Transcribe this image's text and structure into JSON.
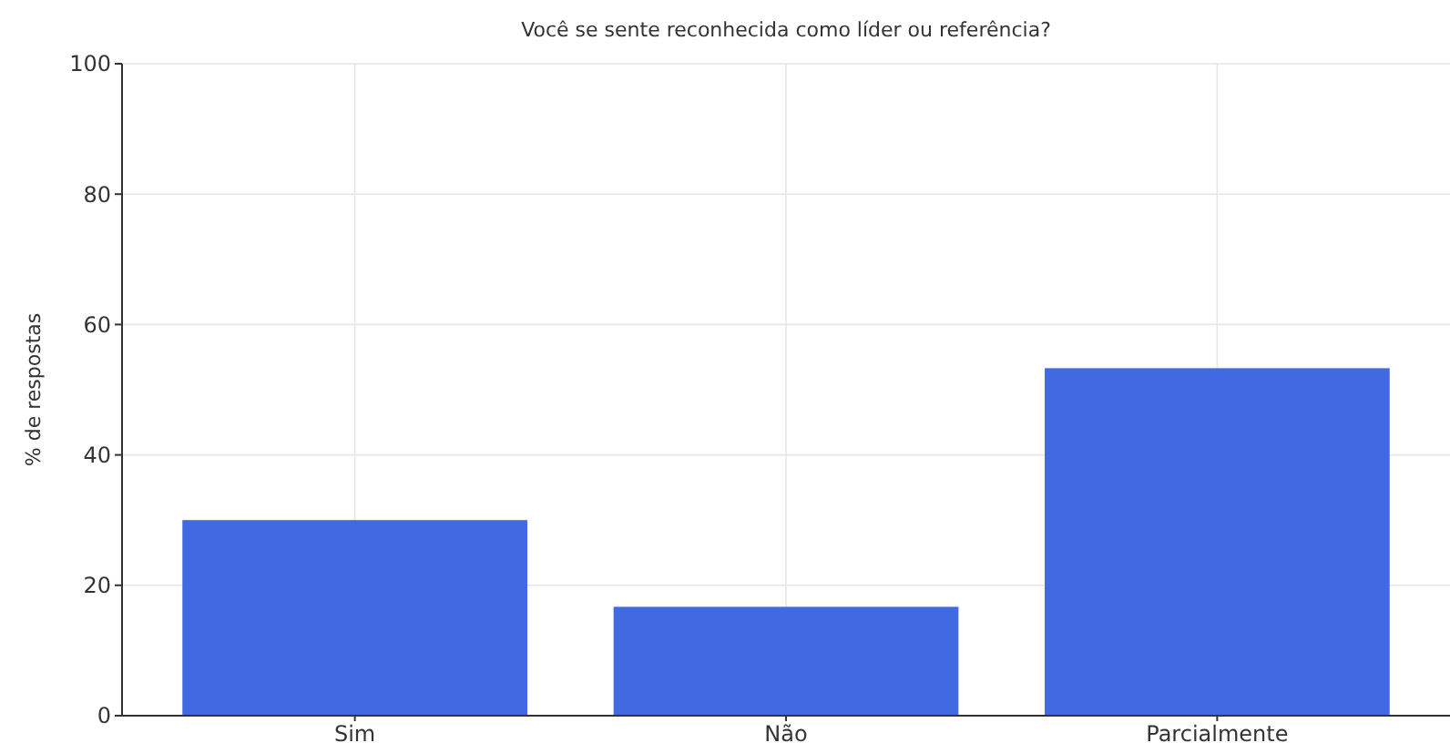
{
  "chart_data": {
    "type": "bar",
    "title": "Você se sente reconhecida como líder ou referência?",
    "ylabel": "% de respostas",
    "categories": [
      "Sim",
      "Não",
      "Parcialmente"
    ],
    "values": [
      30,
      16.7,
      53.3
    ],
    "color": "#4169e1",
    "ylim": [
      0,
      100
    ],
    "yticks": [
      0,
      20,
      40,
      60,
      80,
      100
    ],
    "grid": true
  }
}
